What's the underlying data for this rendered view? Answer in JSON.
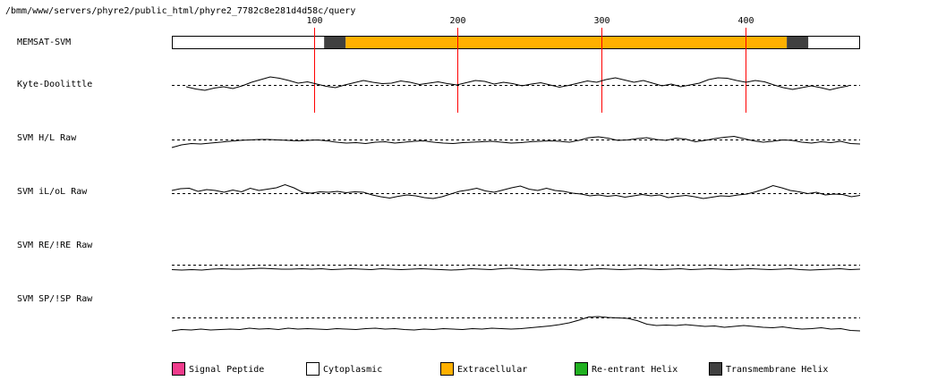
{
  "header": {
    "path": "/bmm/www/servers/phyre2/public_html/phyre2_7782c8e281d4d58c/query"
  },
  "colors": {
    "extracellular": "#FFB000",
    "transmembrane": "#404040",
    "cytoplasmic": "#FFFFFF",
    "signal_peptide": "#F03C8C",
    "reentrant": "#20B020",
    "marker": "#FF0000",
    "trace": "#000000"
  },
  "chart_data": {
    "type": "line",
    "title": "",
    "x_axis": {
      "range": [
        1,
        480
      ],
      "ticks": [
        100,
        200,
        300,
        400
      ]
    },
    "memsat": {
      "label": "MEMSAT-SVM",
      "segments": [
        {
          "start": 1,
          "end": 107,
          "class": "cytoplasmic"
        },
        {
          "start": 107,
          "end": 122,
          "class": "transmembrane"
        },
        {
          "start": 122,
          "end": 429,
          "class": "extracellular"
        },
        {
          "start": 429,
          "end": 444,
          "class": "transmembrane"
        },
        {
          "start": 444,
          "end": 480,
          "class": "cytoplasmic"
        }
      ]
    },
    "series": [
      {
        "name": "Kyte-Doolittle",
        "x_start": 11,
        "x_end": 472,
        "values": [
          -0.2,
          -0.45,
          -0.6,
          -0.35,
          -0.2,
          -0.4,
          -0.1,
          0.3,
          0.6,
          0.9,
          0.75,
          0.5,
          0.2,
          0.35,
          0.1,
          -0.15,
          -0.3,
          0.0,
          0.25,
          0.5,
          0.3,
          0.15,
          0.2,
          0.45,
          0.3,
          0.05,
          0.2,
          0.35,
          0.15,
          0.0,
          0.25,
          0.5,
          0.4,
          0.1,
          0.3,
          0.15,
          -0.1,
          0.1,
          0.25,
          0.0,
          -0.25,
          -0.05,
          0.2,
          0.45,
          0.3,
          0.6,
          0.8,
          0.55,
          0.3,
          0.5,
          0.2,
          -0.1,
          0.1,
          -0.2,
          0.0,
          0.2,
          0.6,
          0.8,
          0.75,
          0.5,
          0.3,
          0.5,
          0.35,
          0.0,
          -0.3,
          -0.5,
          -0.3,
          -0.1,
          -0.3,
          -0.55,
          -0.3,
          -0.1
        ]
      },
      {
        "name": "SVM H/L Raw",
        "x_start": 1,
        "x_end": 480,
        "values": [
          -0.9,
          -0.6,
          -0.45,
          -0.5,
          -0.4,
          -0.3,
          -0.2,
          -0.1,
          -0.05,
          0.0,
          0.0,
          -0.05,
          -0.1,
          -0.15,
          -0.1,
          -0.05,
          -0.15,
          -0.3,
          -0.4,
          -0.35,
          -0.45,
          -0.3,
          -0.25,
          -0.4,
          -0.3,
          -0.2,
          -0.15,
          -0.3,
          -0.4,
          -0.45,
          -0.35,
          -0.3,
          -0.25,
          -0.2,
          -0.3,
          -0.4,
          -0.35,
          -0.25,
          -0.2,
          -0.15,
          -0.2,
          -0.3,
          -0.1,
          0.2,
          0.3,
          0.15,
          -0.1,
          -0.05,
          0.1,
          0.2,
          0.0,
          -0.1,
          0.15,
          0.05,
          -0.25,
          -0.1,
          0.1,
          0.25,
          0.35,
          0.1,
          -0.15,
          -0.3,
          -0.2,
          -0.05,
          -0.1,
          -0.3,
          -0.4,
          -0.25,
          -0.35,
          -0.2,
          -0.45,
          -0.5
        ]
      },
      {
        "name": "SVM iL/oL Raw",
        "x_start": 1,
        "x_end": 480,
        "values": [
          0.3,
          0.5,
          0.55,
          0.2,
          0.4,
          0.3,
          0.1,
          0.35,
          0.15,
          0.55,
          0.3,
          0.45,
          0.6,
          0.95,
          0.6,
          0.1,
          0.0,
          0.15,
          0.1,
          0.2,
          0.05,
          0.15,
          0.1,
          -0.2,
          -0.4,
          -0.55,
          -0.35,
          -0.2,
          -0.3,
          -0.5,
          -0.6,
          -0.4,
          -0.1,
          0.2,
          0.35,
          0.55,
          0.25,
          0.1,
          0.35,
          0.6,
          0.8,
          0.45,
          0.3,
          0.55,
          0.3,
          0.2,
          0.0,
          -0.1,
          -0.3,
          -0.2,
          -0.35,
          -0.25,
          -0.45,
          -0.3,
          -0.15,
          -0.3,
          -0.2,
          -0.5,
          -0.35,
          -0.25,
          -0.4,
          -0.6,
          -0.45,
          -0.3,
          -0.35,
          -0.2,
          -0.1,
          0.15,
          0.45,
          0.85,
          0.6,
          0.3,
          0.15,
          -0.05,
          0.1,
          -0.2,
          -0.1,
          -0.15,
          -0.4,
          -0.25
        ]
      },
      {
        "name": "SVM RE/!RE Raw",
        "x_start": 1,
        "x_end": 480,
        "values": [
          -0.55,
          -0.6,
          -0.55,
          -0.6,
          -0.5,
          -0.45,
          -0.5,
          -0.5,
          -0.45,
          -0.4,
          -0.45,
          -0.5,
          -0.5,
          -0.45,
          -0.5,
          -0.45,
          -0.55,
          -0.5,
          -0.45,
          -0.5,
          -0.55,
          -0.45,
          -0.5,
          -0.55,
          -0.5,
          -0.45,
          -0.5,
          -0.55,
          -0.6,
          -0.55,
          -0.45,
          -0.5,
          -0.55,
          -0.45,
          -0.4,
          -0.5,
          -0.55,
          -0.6,
          -0.55,
          -0.5,
          -0.55,
          -0.6,
          -0.5,
          -0.45,
          -0.5,
          -0.55,
          -0.5,
          -0.45,
          -0.5,
          -0.55,
          -0.5,
          -0.45,
          -0.55,
          -0.5,
          -0.45,
          -0.5,
          -0.55,
          -0.5,
          -0.45,
          -0.5,
          -0.55,
          -0.5,
          -0.45,
          -0.55,
          -0.6,
          -0.55,
          -0.5,
          -0.45,
          -0.55,
          -0.5
        ]
      },
      {
        "name": "SVM SP/!SP Raw",
        "x_start": 1,
        "x_end": 480,
        "values": [
          -1.5,
          -1.35,
          -1.4,
          -1.3,
          -1.4,
          -1.35,
          -1.3,
          -1.35,
          -1.2,
          -1.3,
          -1.25,
          -1.35,
          -1.2,
          -1.3,
          -1.25,
          -1.3,
          -1.35,
          -1.25,
          -1.3,
          -1.35,
          -1.25,
          -1.2,
          -1.3,
          -1.25,
          -1.35,
          -1.4,
          -1.3,
          -1.35,
          -1.25,
          -1.3,
          -1.35,
          -1.25,
          -1.3,
          -1.2,
          -1.25,
          -1.3,
          -1.25,
          -1.15,
          -1.05,
          -0.95,
          -0.8,
          -0.6,
          -0.3,
          0.05,
          0.1,
          0.0,
          -0.05,
          -0.1,
          -0.35,
          -0.75,
          -0.9,
          -0.85,
          -0.9,
          -0.8,
          -0.9,
          -1.0,
          -0.95,
          -1.1,
          -1.0,
          -0.9,
          -1.0,
          -1.1,
          -1.15,
          -1.05,
          -1.2,
          -1.3,
          -1.25,
          -1.15,
          -1.3,
          -1.25,
          -1.45,
          -1.5
        ]
      }
    ],
    "legend": [
      {
        "label": "Signal Peptide",
        "color_key": "signal_peptide"
      },
      {
        "label": "Cytoplasmic",
        "color_key": "cytoplasmic"
      },
      {
        "label": "Extracellular",
        "color_key": "extracellular"
      },
      {
        "label": "Re-entrant Helix",
        "color_key": "reentrant"
      },
      {
        "label": "Transmembrane Helix",
        "color_key": "transmembrane"
      }
    ]
  }
}
